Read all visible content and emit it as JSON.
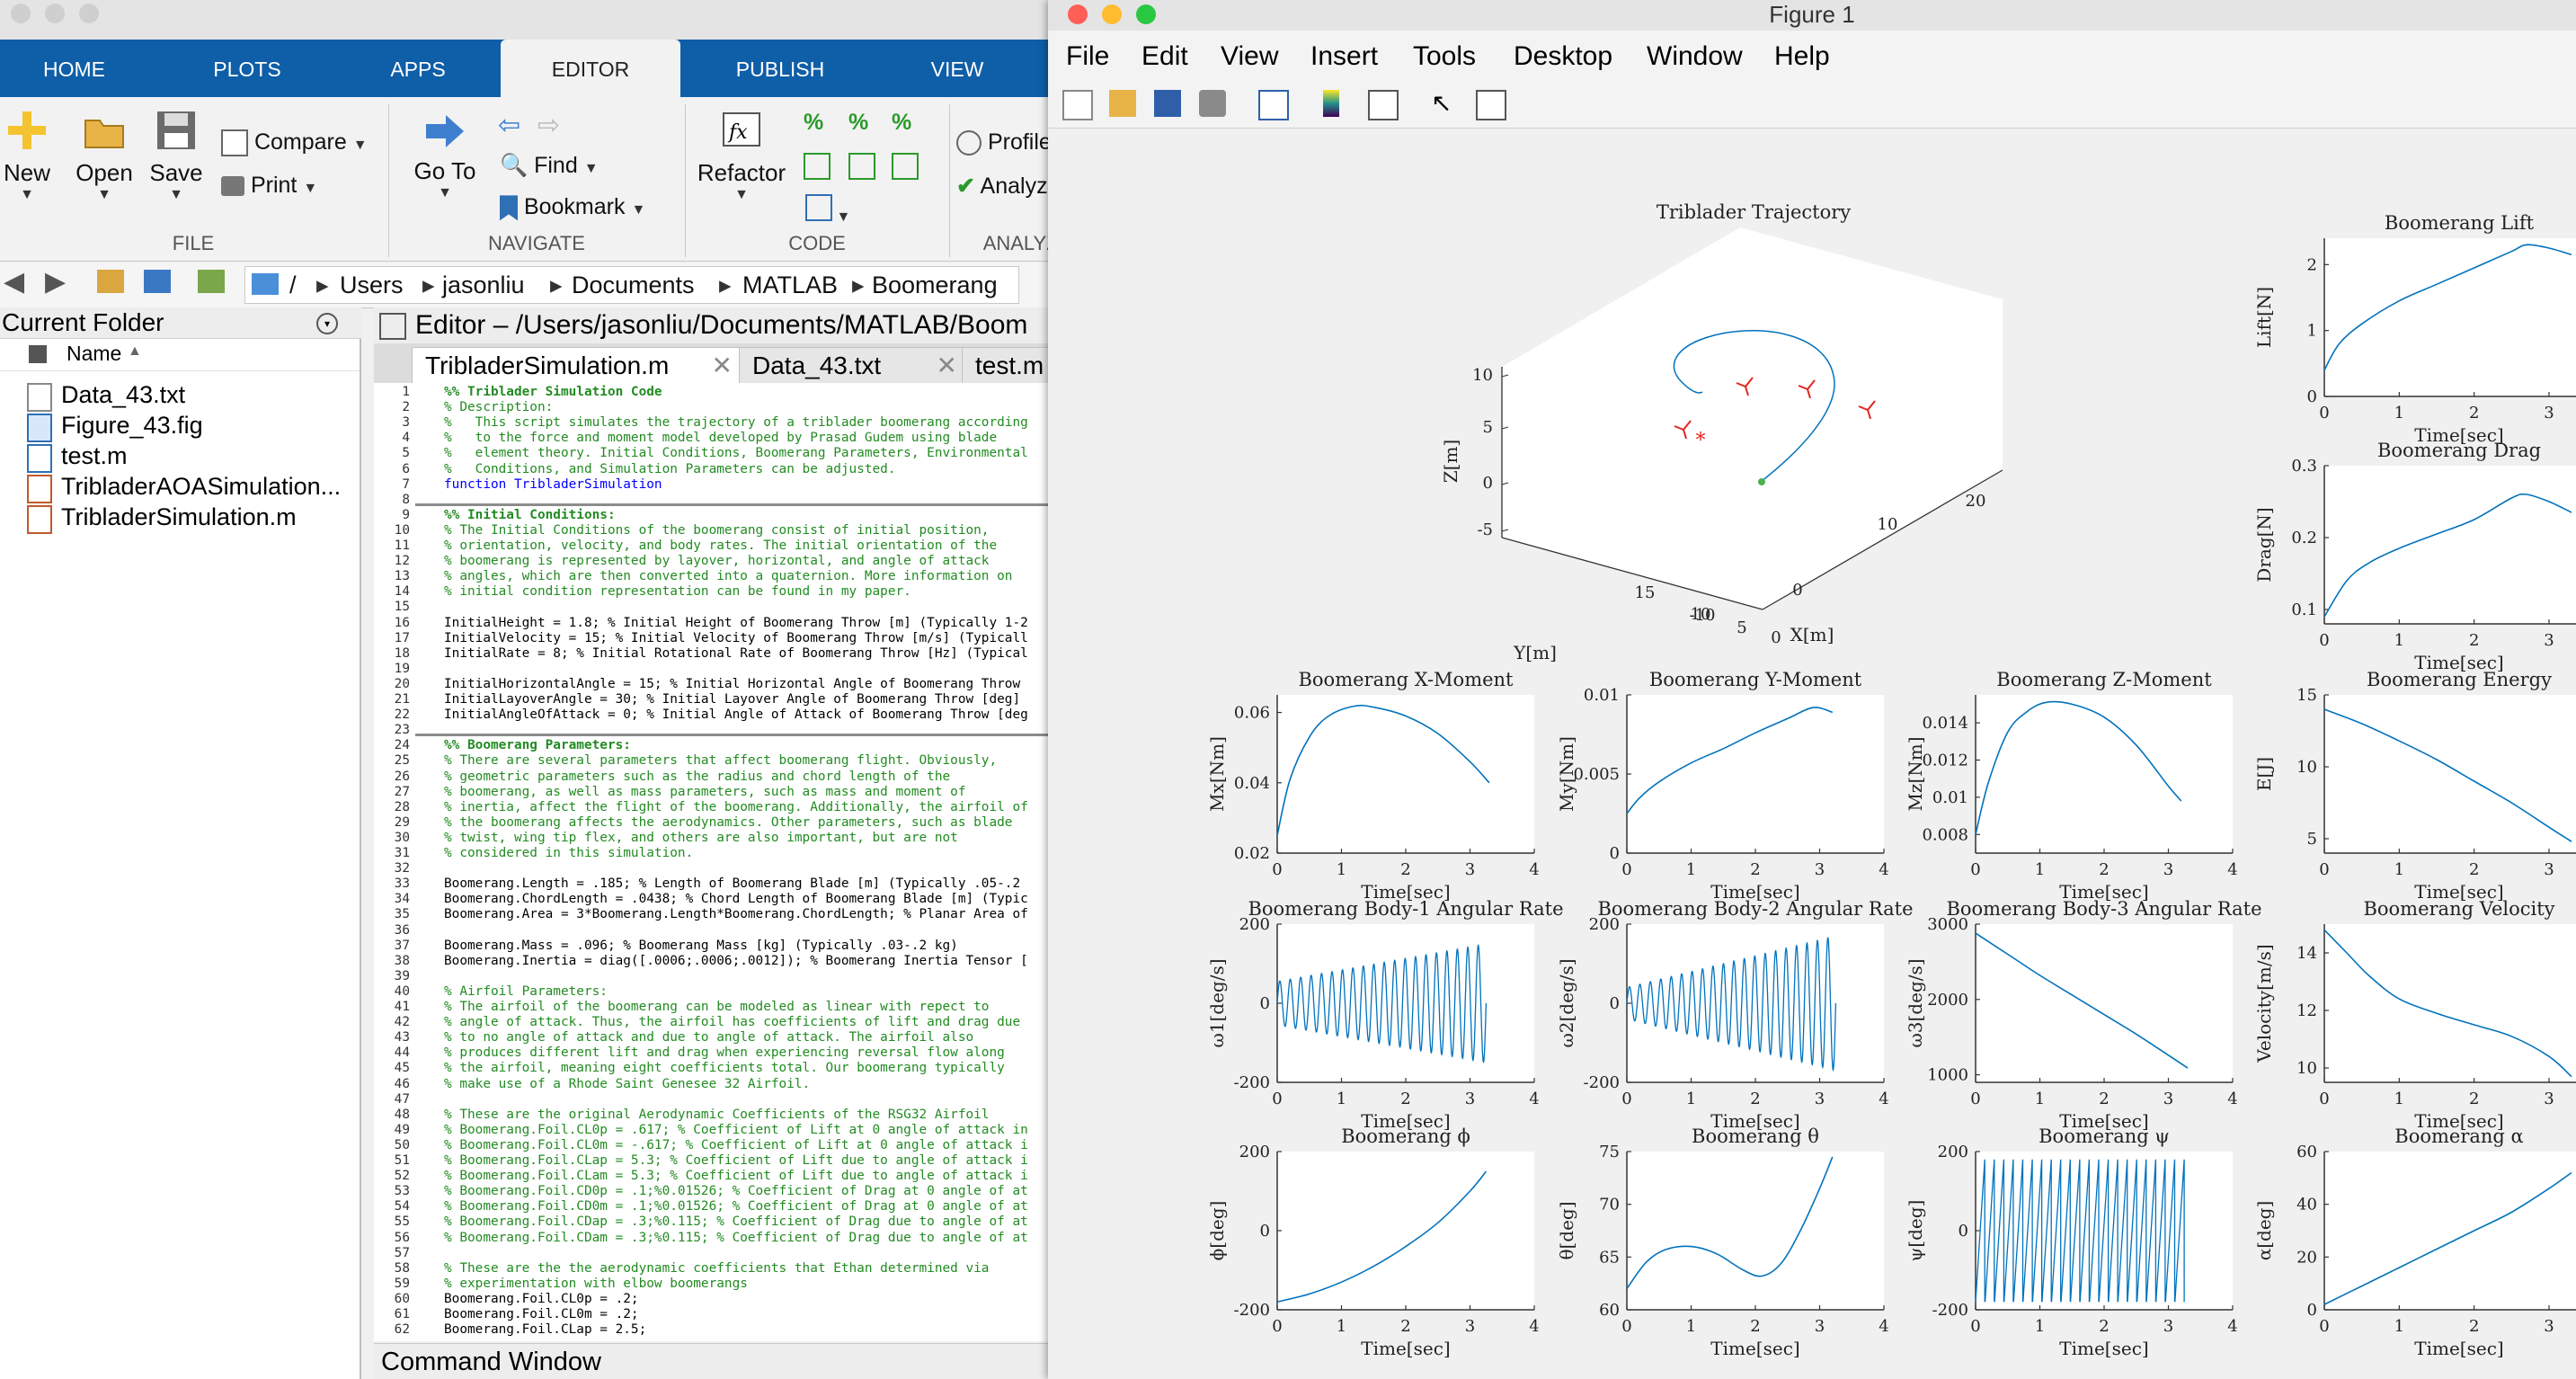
{
  "matlab": {
    "ribbon_tabs": [
      "HOME",
      "PLOTS",
      "APPS",
      "EDITOR",
      "PUBLISH",
      "VIEW"
    ],
    "file_group": {
      "label": "FILE",
      "new": "New",
      "open": "Open",
      "save": "Save",
      "compare": "Compare",
      "print": "Print"
    },
    "navigate_group": {
      "label": "NAVIGATE",
      "goto": "Go To",
      "find": "Find",
      "bookmark": "Bookmark"
    },
    "code_group": {
      "label": "CODE",
      "refactor": "Refactor"
    },
    "analyze_group": {
      "label": "ANALYZE",
      "profiler": "Profile",
      "analyzer": "Analyz"
    },
    "address": {
      "root": "/",
      "parts": [
        "Users",
        "jasonliu",
        "Documents",
        "MATLAB",
        "Boomerang"
      ]
    },
    "current_folder": {
      "title": "Current Folder",
      "column": "Name",
      "files": [
        "Data_43.txt",
        "Figure_43.fig",
        "test.m",
        "TribladerAOASimulation...",
        "TribladerSimulation.m"
      ]
    },
    "editor": {
      "title": "Editor – /Users/jasonliu/Documents/MATLAB/Boom",
      "tabs": [
        "TribladerSimulation.m",
        "Data_43.txt",
        "test.m"
      ],
      "lines": [
        "%% Triblader Simulation Code",
        "% Description:",
        "%   This script simulates the trajectory of a triblader boomerang according",
        "%   to the force and moment model developed by Prasad Gudem using blade",
        "%   element theory. Initial Conditions, Boomerang Parameters, Environmental",
        "%   Conditions, and Simulation Parameters can be adjusted.",
        "function TribladerSimulation",
        "",
        "%% Initial Conditions:",
        "% The Initial Conditions of the boomerang consist of initial position,",
        "% orientation, velocity, and body rates. The initial orientation of the",
        "% boomerang is represented by layover, horizontal, and angle of attack",
        "% angles, which are then converted into a quaternion. More information on",
        "% initial condition representation can be found in my paper.",
        "",
        "InitialHeight = 1.8; % Initial Height of Boomerang Throw [m] (Typically 1-2",
        "InitialVelocity = 15; % Initial Velocity of Boomerang Throw [m/s] (Typicall",
        "InitialRate = 8; % Initial Rotational Rate of Boomerang Throw [Hz] (Typical",
        "",
        "InitialHorizontalAngle = 15; % Initial Horizontal Angle of Boomerang Throw",
        "InitialLayoverAngle = 30; % Initial Layover Angle of Boomerang Throw [deg]",
        "InitialAngleOfAttack = 0; % Initial Angle of Attack of Boomerang Throw [deg",
        "",
        "%% Boomerang Parameters:",
        "% There are several parameters that affect boomerang flight. Obviously,",
        "% geometric parameters such as the radius and chord length of the",
        "% boomerang, as well as mass parameters, such as mass and moment of",
        "% inertia, affect the flight of the boomerang. Additionally, the airfoil of",
        "% the boomerang affects the aerodynamics. Other parameters, such as blade",
        "% twist, wing tip flex, and others are also important, but are not",
        "% considered in this simulation.",
        "",
        "Boomerang.Length = .185; % Length of Boomerang Blade [m] (Typically .05-.2",
        "Boomerang.ChordLength = .0438; % Chord Length of Boomerang Blade [m] (Typic",
        "Boomerang.Area = 3*Boomerang.Length*Boomerang.ChordLength; % Planar Area of",
        "",
        "Boomerang.Mass = .096; % Boomerang Mass [kg] (Typically .03-.2 kg)",
        "Boomerang.Inertia = diag([.0006;.0006;.0012]); % Boomerang Inertia Tensor [",
        "",
        "% Airfoil Parameters:",
        "% The airfoil of the boomerang can be modeled as linear with repect to",
        "% angle of attack. Thus, the airfoil has coefficients of lift and drag due",
        "% to no angle of attack and due to angle of attack. The airfoil also",
        "% produces different lift and drag when experiencing reversal flow along",
        "% the airfoil, meaning eight coefficients total. Our boomerang typically",
        "% make use of a Rhode Saint Genesee 32 Airfoil.",
        "",
        "% These are the original Aerodynamic Coefficients of the RSG32 Airfoil",
        "% Boomerang.Foil.CL0p = .617; % Coefficient of Lift at 0 angle of attack in",
        "% Boomerang.Foil.CL0m = -.617; % Coefficient of Lift at 0 angle of attack i",
        "% Boomerang.Foil.CLap = 5.3; % Coefficient of Lift due to angle of attack i",
        "% Boomerang.Foil.CLam = 5.3; % Coefficient of Lift due to angle of attack i",
        "% Boomerang.Foil.CD0p = .1;%0.01526; % Coefficient of Drag at 0 angle of at",
        "% Boomerang.Foil.CD0m = .1;%0.01526; % Coefficient of Drag at 0 angle of at",
        "% Boomerang.Foil.CDap = .3;%0.115; % Coefficient of Drag due to angle of at",
        "% Boomerang.Foil.CDam = .3;%0.115; % Coefficient of Drag due to angle of at",
        "",
        "% These are the the aerodynamic coefficients that Ethan determined via",
        "% experimentation with elbow boomerangs",
        "Boomerang.Foil.CL0p = .2;",
        "Boomerang.Foil.CL0m = .2;",
        "Boomerang.Foil.CLap = 2.5;"
      ]
    },
    "command_window": "Command Window"
  },
  "figure": {
    "title": "Figure 1",
    "menu": [
      "File",
      "Edit",
      "View",
      "Insert",
      "Tools",
      "Desktop",
      "Window",
      "Help"
    ],
    "toolbar_icons": [
      "new-figure-icon",
      "open-file-icon",
      "save-icon",
      "print-icon",
      "link-icon",
      "colorbar-icon",
      "legend-icon",
      "pointer-icon",
      "property-inspector-icon"
    ]
  },
  "chart_data": [
    {
      "type": "line3d",
      "title": "Triblader Trajectory",
      "xlabel": "X[m]",
      "ylabel": "Y[m]",
      "zlabel": "Z[m]",
      "xticks": [
        "-10",
        "0",
        "10",
        "20"
      ],
      "yticks": [
        "0",
        "5",
        "10",
        "15"
      ],
      "zticks": [
        "-5",
        "0",
        "5",
        "10"
      ]
    },
    {
      "type": "line",
      "title": "Boomerang Lift",
      "xlabel": "Time[sec]",
      "ylabel": "Lift[N]",
      "xlim": [
        0,
        3.6
      ],
      "ylim": [
        0,
        2.4
      ],
      "xticks": [
        "0",
        "1",
        "2",
        "3"
      ],
      "yticks": [
        "0",
        "1",
        "2"
      ],
      "x": [
        0,
        0.2,
        0.5,
        1,
        1.5,
        2,
        2.5,
        2.7,
        3,
        3.3
      ],
      "y": [
        0.4,
        0.8,
        1.1,
        1.45,
        1.7,
        1.95,
        2.2,
        2.3,
        2.25,
        2.15
      ]
    },
    {
      "type": "line",
      "title": "Boomerang Drag",
      "xlabel": "Time[sec]",
      "ylabel": "Drag[N]",
      "xlim": [
        0,
        3.6
      ],
      "ylim": [
        0.08,
        0.3
      ],
      "xticks": [
        "0",
        "1",
        "2",
        "3"
      ],
      "yticks": [
        "0.1",
        "0.2",
        "0.3"
      ],
      "x": [
        0,
        0.3,
        0.6,
        1,
        1.5,
        2,
        2.5,
        2.7,
        3,
        3.3
      ],
      "y": [
        0.09,
        0.14,
        0.165,
        0.185,
        0.205,
        0.225,
        0.255,
        0.26,
        0.25,
        0.235
      ]
    },
    {
      "type": "line",
      "title": "Boomerang X-Moment",
      "xlabel": "Time[sec]",
      "ylabel": "Mx[Nm]",
      "xlim": [
        0,
        4
      ],
      "ylim": [
        0.02,
        0.065
      ],
      "xticks": [
        "0",
        "1",
        "2",
        "3",
        "4"
      ],
      "yticks": [
        "0.02",
        "0.04",
        "0.06"
      ],
      "x": [
        0,
        0.2,
        0.5,
        0.8,
        1.2,
        1.5,
        2,
        2.5,
        3,
        3.3
      ],
      "y": [
        0.025,
        0.041,
        0.053,
        0.059,
        0.0618,
        0.0615,
        0.059,
        0.054,
        0.046,
        0.04
      ]
    },
    {
      "type": "line",
      "title": "Boomerang Y-Moment",
      "xlabel": "Time[sec]",
      "ylabel": "My[Nm]",
      "xlim": [
        0,
        4
      ],
      "ylim": [
        0,
        0.01
      ],
      "xticks": [
        "0",
        "1",
        "2",
        "3",
        "4"
      ],
      "yticks": [
        "0",
        "0.005",
        "0.01"
      ],
      "x": [
        0,
        0.2,
        0.5,
        1,
        1.5,
        2,
        2.5,
        2.9,
        3.2
      ],
      "y": [
        0.0025,
        0.0035,
        0.0045,
        0.0057,
        0.0066,
        0.0076,
        0.0085,
        0.0092,
        0.0089
      ]
    },
    {
      "type": "line",
      "title": "Boomerang Z-Moment",
      "xlabel": "Time[sec]",
      "ylabel": "Mz[Nm]",
      "xlim": [
        0,
        4
      ],
      "ylim": [
        0.007,
        0.0155
      ],
      "xticks": [
        "0",
        "1",
        "2",
        "3",
        "4"
      ],
      "yticks": [
        "0.008",
        "0.01",
        "0.012",
        "0.014"
      ],
      "x": [
        0,
        0.2,
        0.5,
        0.8,
        1.1,
        1.5,
        2,
        2.5,
        3,
        3.2
      ],
      "y": [
        0.008,
        0.0108,
        0.0135,
        0.0146,
        0.0151,
        0.015,
        0.0143,
        0.0128,
        0.0106,
        0.0098
      ]
    },
    {
      "type": "line",
      "title": "Boomerang Energy",
      "xlabel": "Time[sec]",
      "ylabel": "E[J]",
      "xlim": [
        0,
        3.6
      ],
      "ylim": [
        4,
        15
      ],
      "xticks": [
        "0",
        "1",
        "2",
        "3"
      ],
      "yticks": [
        "5",
        "10",
        "15"
      ],
      "x": [
        0,
        0.5,
        1,
        1.5,
        2,
        2.5,
        3,
        3.3
      ],
      "y": [
        14,
        13,
        11.8,
        10.5,
        9,
        7.5,
        5.8,
        4.8
      ]
    },
    {
      "type": "line",
      "title": "Boomerang Body-1 Angular Rate",
      "xlabel": "Time[sec]",
      "ylabel": "ω1[deg/s]",
      "xlim": [
        0,
        4
      ],
      "ylim": [
        -200,
        200
      ],
      "xticks": [
        "0",
        "1",
        "2",
        "3",
        "4"
      ],
      "yticks": [
        "-200",
        "0",
        "200"
      ],
      "oscillation": {
        "t_start": 0,
        "t_end": 3.25,
        "cycles": 20,
        "amp_start": 55,
        "amp_end": 150
      }
    },
    {
      "type": "line",
      "title": "Boomerang Body-2 Angular Rate",
      "xlabel": "Time[sec]",
      "ylabel": "ω2[deg/s]",
      "xlim": [
        0,
        4
      ],
      "ylim": [
        -200,
        200
      ],
      "xticks": [
        "0",
        "1",
        "2",
        "3",
        "4"
      ],
      "yticks": [
        "-200",
        "0",
        "200"
      ],
      "oscillation": {
        "t_start": 0,
        "t_end": 3.25,
        "cycles": 20,
        "amp_start": 40,
        "amp_end": 170
      }
    },
    {
      "type": "line",
      "title": "Boomerang Body-3 Angular Rate",
      "xlabel": "Time[sec]",
      "ylabel": "ω3[deg/s]",
      "xlim": [
        0,
        4
      ],
      "ylim": [
        900,
        3000
      ],
      "xticks": [
        "0",
        "1",
        "2",
        "3",
        "4"
      ],
      "yticks": [
        "1000",
        "2000",
        "3000"
      ],
      "x": [
        0,
        0.5,
        1,
        1.5,
        2,
        2.5,
        3,
        3.3
      ],
      "y": [
        2880,
        2600,
        2320,
        2060,
        1800,
        1540,
        1260,
        1090
      ]
    },
    {
      "type": "line",
      "title": "Boomerang Velocity",
      "xlabel": "Time[sec]",
      "ylabel": "Velocity[m/s]",
      "xlim": [
        0,
        3.6
      ],
      "ylim": [
        9.5,
        15
      ],
      "xticks": [
        "0",
        "1",
        "2",
        "3"
      ],
      "yticks": [
        "10",
        "12",
        "14"
      ],
      "x": [
        0,
        0.3,
        0.6,
        1,
        1.5,
        2,
        2.5,
        3,
        3.3
      ],
      "y": [
        14.8,
        14,
        13.2,
        12.4,
        11.9,
        11.5,
        11.1,
        10.4,
        9.7
      ]
    },
    {
      "type": "line",
      "title": "Boomerang ϕ",
      "xlabel": "Time[sec]",
      "ylabel": "ϕ[deg]",
      "xlim": [
        0,
        4
      ],
      "ylim": [
        -200,
        200
      ],
      "xticks": [
        "0",
        "1",
        "2",
        "3",
        "4"
      ],
      "yticks": [
        "-200",
        "0",
        "200"
      ],
      "x": [
        0,
        0.5,
        1,
        1.5,
        2,
        2.5,
        3,
        3.25
      ],
      "y": [
        -180,
        -160,
        -130,
        -90,
        -40,
        20,
        100,
        150
      ]
    },
    {
      "type": "line",
      "title": "Boomerang θ",
      "xlabel": "Time[sec]",
      "ylabel": "θ[deg]",
      "xlim": [
        0,
        4
      ],
      "ylim": [
        60,
        75
      ],
      "xticks": [
        "0",
        "1",
        "2",
        "3",
        "4"
      ],
      "yticks": [
        "60",
        "65",
        "70",
        "75"
      ],
      "x": [
        0,
        0.3,
        0.6,
        1,
        1.4,
        1.8,
        2.1,
        2.4,
        2.7,
        3,
        3.2
      ],
      "y": [
        62,
        64.5,
        65.7,
        66,
        65.3,
        63.8,
        63.2,
        64.4,
        67.5,
        71.5,
        74.5
      ]
    },
    {
      "type": "line",
      "title": "Boomerang ψ",
      "xlabel": "Time[sec]",
      "ylabel": "ψ[deg]",
      "xlim": [
        0,
        4
      ],
      "ylim": [
        -200,
        200
      ],
      "xticks": [
        "0",
        "1",
        "2",
        "3",
        "4"
      ],
      "yticks": [
        "-200",
        "0",
        "200"
      ],
      "sawtooth": {
        "t_start": 0,
        "t_end": 3.25,
        "cycles": 22,
        "low": -180,
        "high": 180
      }
    },
    {
      "type": "line",
      "title": "Boomerang α",
      "xlabel": "Time[sec]",
      "ylabel": "α[deg]",
      "xlim": [
        0,
        3.6
      ],
      "ylim": [
        0,
        60
      ],
      "xticks": [
        "0",
        "1",
        "2",
        "3"
      ],
      "yticks": [
        "0",
        "20",
        "40",
        "60"
      ],
      "x": [
        0,
        0.5,
        1,
        1.5,
        2,
        2.5,
        3,
        3.3
      ],
      "y": [
        2,
        9,
        16,
        23,
        30,
        37,
        46,
        52
      ]
    }
  ]
}
